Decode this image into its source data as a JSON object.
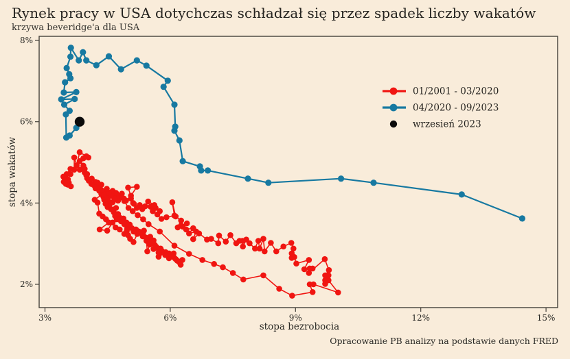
{
  "page": {
    "title": "Rynek pracy w USA dotychczas schładzał się przez spadek liczby wakatów",
    "subtitle": "krzywa beveridge'a dla USA",
    "source_note": "Opracowanie PB analizy na podstawie danych FRED"
  },
  "legend": {
    "items": [
      {
        "label": "01/2001 - 03/2020",
        "marker": "line-with-dot",
        "color": "#f01511"
      },
      {
        "label": "04/2020 - 09/2023",
        "marker": "line-with-dot",
        "color": "#1779a1"
      },
      {
        "label": "wrzesień 2023",
        "marker": "dot",
        "color": "#0b0b0b"
      }
    ]
  },
  "chart_data": {
    "type": "scatter",
    "title": "Rynek pracy w USA dotychczas schładzał się przez spadek liczby wakatów",
    "subtitle": "krzywa beveridge'a dla USA",
    "xlabel": "stopa bezrobocia",
    "ylabel": "stopa wakatów",
    "source_note": "Opracowanie PB analizy na podstawie danych FRED",
    "x_axis": {
      "ticks": [
        3,
        6,
        9,
        12,
        15
      ],
      "tick_labels": [
        "3%",
        "6%",
        "9%",
        "12%",
        "15%"
      ],
      "range": [
        3,
        15.3
      ]
    },
    "y_axis": {
      "ticks": [
        2,
        4,
        6,
        8
      ],
      "tick_labels": [
        "2%",
        "4%",
        "6%",
        "8%"
      ],
      "range": [
        1.6,
        8.1
      ]
    },
    "grid": false,
    "legend_position": "inside-upper-right",
    "series": [
      {
        "name": "01/2001 - 03/2020",
        "color": "#f01511",
        "marker_radius": 4.3,
        "line_width": 1.6,
        "points": [
          [
            4.21,
            4.36
          ],
          [
            4.3,
            4.3
          ],
          [
            4.43,
            4.26
          ],
          [
            4.19,
            4.08
          ],
          [
            4.26,
            4.01
          ],
          [
            4.3,
            3.74
          ],
          [
            4.38,
            3.67
          ],
          [
            4.46,
            3.6
          ],
          [
            4.53,
            3.52
          ],
          [
            4.31,
            3.35
          ],
          [
            4.49,
            3.32
          ],
          [
            4.62,
            3.52
          ],
          [
            4.69,
            3.4
          ],
          [
            4.79,
            3.35
          ],
          [
            4.9,
            3.24
          ],
          [
            4.96,
            3.32
          ],
          [
            4.99,
            3.21
          ],
          [
            5.04,
            3.12
          ],
          [
            5.12,
            3.04
          ],
          [
            5.21,
            3.24
          ],
          [
            5.34,
            3.18
          ],
          [
            5.43,
            3.07
          ],
          [
            5.45,
            2.81
          ],
          [
            5.51,
            2.98
          ],
          [
            5.67,
            2.9
          ],
          [
            5.72,
            2.68
          ],
          [
            5.75,
            2.76
          ],
          [
            5.89,
            2.79
          ],
          [
            5.97,
            2.64
          ],
          [
            6.08,
            2.76
          ],
          [
            6.13,
            2.62
          ],
          [
            6.22,
            2.54
          ],
          [
            6.29,
            2.6
          ],
          [
            6.25,
            2.48
          ],
          [
            6.17,
            2.58
          ],
          [
            6.1,
            2.65
          ],
          [
            6.05,
            2.7
          ],
          [
            5.97,
            2.76
          ],
          [
            5.88,
            2.72
          ],
          [
            5.8,
            2.82
          ],
          [
            5.72,
            2.78
          ],
          [
            5.77,
            2.88
          ],
          [
            5.67,
            2.92
          ],
          [
            5.6,
            2.87
          ],
          [
            5.63,
            2.97
          ],
          [
            5.55,
            3.02
          ],
          [
            5.6,
            3.08
          ],
          [
            5.5,
            3.05
          ],
          [
            5.45,
            3.12
          ],
          [
            5.52,
            3.17
          ],
          [
            5.42,
            3.15
          ],
          [
            5.35,
            3.22
          ],
          [
            5.3,
            3.28
          ],
          [
            5.37,
            3.32
          ],
          [
            5.25,
            3.3
          ],
          [
            5.18,
            3.35
          ],
          [
            5.12,
            3.3
          ],
          [
            5.08,
            3.38
          ],
          [
            5.02,
            3.43
          ],
          [
            4.97,
            3.38
          ],
          [
            5.03,
            3.47
          ],
          [
            4.95,
            3.52
          ],
          [
            4.9,
            3.48
          ],
          [
            4.82,
            3.55
          ],
          [
            4.88,
            3.62
          ],
          [
            4.78,
            3.65
          ],
          [
            4.72,
            3.6
          ],
          [
            4.68,
            3.68
          ],
          [
            4.75,
            3.73
          ],
          [
            4.65,
            3.77
          ],
          [
            4.62,
            3.83
          ],
          [
            4.7,
            3.88
          ],
          [
            4.58,
            3.85
          ],
          [
            4.5,
            3.9
          ],
          [
            4.55,
            3.97
          ],
          [
            4.62,
            4.02
          ],
          [
            4.52,
            4.05
          ],
          [
            4.45,
            3.98
          ],
          [
            4.42,
            4.08
          ],
          [
            4.5,
            4.12
          ],
          [
            4.58,
            4.18
          ],
          [
            4.48,
            4.22
          ],
          [
            4.4,
            4.15
          ],
          [
            4.35,
            4.22
          ],
          [
            4.44,
            4.28
          ],
          [
            4.55,
            4.25
          ],
          [
            4.65,
            4.2
          ],
          [
            4.78,
            4.12
          ],
          [
            4.9,
            4.05
          ],
          [
            5.0,
            3.88
          ],
          [
            5.1,
            3.8
          ],
          [
            5.22,
            3.7
          ],
          [
            5.35,
            3.6
          ],
          [
            5.48,
            3.48
          ],
          [
            5.75,
            3.3
          ],
          [
            6.1,
            2.95
          ],
          [
            6.45,
            2.75
          ],
          [
            6.77,
            2.6
          ],
          [
            7.05,
            2.5
          ],
          [
            7.26,
            2.42
          ],
          [
            7.5,
            2.28
          ],
          [
            7.75,
            2.12
          ],
          [
            8.23,
            2.22
          ],
          [
            8.61,
            1.89
          ],
          [
            8.92,
            1.72
          ],
          [
            9.41,
            1.81
          ],
          [
            9.34,
            2.0
          ],
          [
            9.43,
            2.0
          ],
          [
            10.02,
            1.8
          ],
          [
            9.79,
            2.1
          ],
          [
            9.71,
            2.01
          ],
          [
            9.71,
            2.1
          ],
          [
            9.79,
            2.22
          ],
          [
            9.71,
            2.22
          ],
          [
            9.8,
            2.35
          ],
          [
            9.7,
            2.62
          ],
          [
            9.32,
            2.28
          ],
          [
            9.41,
            2.39
          ],
          [
            9.34,
            2.39
          ],
          [
            9.21,
            2.37
          ],
          [
            9.32,
            2.6
          ],
          [
            9.02,
            2.51
          ],
          [
            8.97,
            2.67
          ],
          [
            8.91,
            2.65
          ],
          [
            8.91,
            2.76
          ],
          [
            8.95,
            2.88
          ],
          [
            8.9,
            3.02
          ],
          [
            8.71,
            2.93
          ],
          [
            8.54,
            2.81
          ],
          [
            8.41,
            3.02
          ],
          [
            8.26,
            2.81
          ],
          [
            8.23,
            3.12
          ],
          [
            8.14,
            2.88
          ],
          [
            8.11,
            3.07
          ],
          [
            8.03,
            2.88
          ],
          [
            7.9,
            3.01
          ],
          [
            7.82,
            3.1
          ],
          [
            7.74,
            2.93
          ],
          [
            7.73,
            3.07
          ],
          [
            7.66,
            3.07
          ],
          [
            7.58,
            3.01
          ],
          [
            7.44,
            3.21
          ],
          [
            7.33,
            3.05
          ],
          [
            7.17,
            3.2
          ],
          [
            7.15,
            3.01
          ],
          [
            6.98,
            3.12
          ],
          [
            6.88,
            3.1
          ],
          [
            6.69,
            3.25
          ],
          [
            6.55,
            3.11
          ],
          [
            6.62,
            3.3
          ],
          [
            6.45,
            3.25
          ],
          [
            6.55,
            3.38
          ],
          [
            6.38,
            3.35
          ],
          [
            6.3,
            3.42
          ],
          [
            6.4,
            3.5
          ],
          [
            6.26,
            3.45
          ],
          [
            6.18,
            3.4
          ],
          [
            6.26,
            3.57
          ],
          [
            6.13,
            3.67
          ],
          [
            6.05,
            4.02
          ],
          [
            6.1,
            3.69
          ],
          [
            5.91,
            3.65
          ],
          [
            5.79,
            3.61
          ],
          [
            5.69,
            3.72
          ],
          [
            5.75,
            3.8
          ],
          [
            5.65,
            3.88
          ],
          [
            5.58,
            3.8
          ],
          [
            5.53,
            3.91
          ],
          [
            5.62,
            3.95
          ],
          [
            5.47,
            4.04
          ],
          [
            5.4,
            3.92
          ],
          [
            5.33,
            3.85
          ],
          [
            5.27,
            3.95
          ],
          [
            5.2,
            3.88
          ],
          [
            5.13,
            3.98
          ],
          [
            5.06,
            4.11
          ],
          [
            5.11,
            4.0
          ],
          [
            4.99,
            4.38
          ],
          [
            5.2,
            4.4
          ],
          [
            5.06,
            4.18
          ],
          [
            4.94,
            4.06
          ],
          [
            4.89,
            4.11
          ],
          [
            4.84,
            4.23
          ],
          [
            4.75,
            4.06
          ],
          [
            4.73,
            4.19
          ],
          [
            4.66,
            4.12
          ],
          [
            4.7,
            4.25
          ],
          [
            4.59,
            4.22
          ],
          [
            4.62,
            4.3
          ],
          [
            4.52,
            4.26
          ],
          [
            4.48,
            4.35
          ],
          [
            4.41,
            4.21
          ],
          [
            4.35,
            4.32
          ],
          [
            4.29,
            4.4
          ],
          [
            4.35,
            4.45
          ],
          [
            4.26,
            4.5
          ],
          [
            4.17,
            4.44
          ],
          [
            4.21,
            4.52
          ],
          [
            4.11,
            4.47
          ],
          [
            4.05,
            4.55
          ],
          [
            4.12,
            4.6
          ],
          [
            4.01,
            4.61
          ],
          [
            3.99,
            4.68
          ],
          [
            3.95,
            4.75
          ],
          [
            4.01,
            4.71
          ],
          [
            3.95,
            4.84
          ],
          [
            3.83,
            4.82
          ],
          [
            3.92,
            4.92
          ],
          [
            3.83,
            5.03
          ],
          [
            3.92,
            5.1
          ],
          [
            4.04,
            5.12
          ],
          [
            3.99,
            5.15
          ],
          [
            3.83,
            5.25
          ],
          [
            3.76,
            4.93
          ],
          [
            3.7,
            5.12
          ],
          [
            3.7,
            4.82
          ],
          [
            3.61,
            4.84
          ],
          [
            3.52,
            4.71
          ],
          [
            3.61,
            4.71
          ],
          [
            3.44,
            4.65
          ],
          [
            3.55,
            4.58
          ],
          [
            3.57,
            4.5
          ],
          [
            3.5,
            4.55
          ],
          [
            3.62,
            4.41
          ],
          [
            3.55,
            4.45
          ],
          [
            3.48,
            4.5
          ],
          [
            3.52,
            4.58
          ],
          [
            3.45,
            4.52
          ],
          [
            3.5,
            4.47
          ],
          [
            3.47,
            4.55
          ],
          [
            3.52,
            4.5
          ]
        ]
      },
      {
        "name": "04/2020 - 09/2023",
        "color": "#1779a1",
        "marker_radius": 4.6,
        "line_width": 2.2,
        "points": [
          [
            14.43,
            3.62
          ],
          [
            12.98,
            4.21
          ],
          [
            10.87,
            4.5
          ],
          [
            10.09,
            4.6
          ],
          [
            8.35,
            4.5
          ],
          [
            7.86,
            4.6
          ],
          [
            6.9,
            4.8
          ],
          [
            6.74,
            4.8
          ],
          [
            6.71,
            4.9
          ],
          [
            6.3,
            5.03
          ],
          [
            6.22,
            5.54
          ],
          [
            6.1,
            5.78
          ],
          [
            6.12,
            5.88
          ],
          [
            6.1,
            6.42
          ],
          [
            5.84,
            6.86
          ],
          [
            5.94,
            7.01
          ],
          [
            5.43,
            7.38
          ],
          [
            5.2,
            7.51
          ],
          [
            4.82,
            7.29
          ],
          [
            4.53,
            7.61
          ],
          [
            4.23,
            7.39
          ],
          [
            3.99,
            7.51
          ],
          [
            3.91,
            7.71
          ],
          [
            3.81,
            7.51
          ],
          [
            3.62,
            7.82
          ],
          [
            3.61,
            7.6
          ],
          [
            3.52,
            7.32
          ],
          [
            3.58,
            7.17
          ],
          [
            3.61,
            7.07
          ],
          [
            3.48,
            6.97
          ],
          [
            3.45,
            6.72
          ],
          [
            3.75,
            6.73
          ],
          [
            3.39,
            6.55
          ],
          [
            3.71,
            6.56
          ],
          [
            3.46,
            6.42
          ],
          [
            3.59,
            6.27
          ],
          [
            3.5,
            6.18
          ],
          [
            3.51,
            5.61
          ],
          [
            3.59,
            5.66
          ],
          [
            3.75,
            5.85
          ],
          [
            3.83,
            6.0
          ]
        ]
      }
    ],
    "highlight_point": {
      "name": "wrzesień 2023",
      "color": "#0b0b0b",
      "radius": 7.2,
      "point": [
        3.83,
        6.0
      ]
    }
  }
}
